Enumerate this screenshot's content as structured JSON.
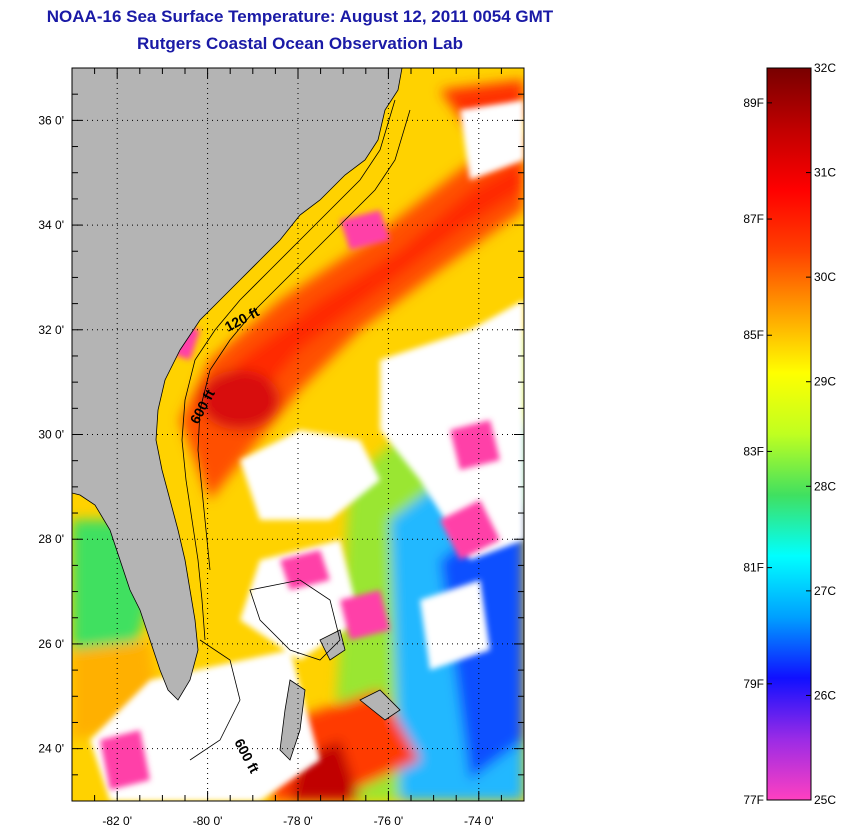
{
  "title": "NOAA-16 Sea Surface Temperature:  August 12, 2011 0054 GMT",
  "subtitle": "Rutgers Coastal Ocean Observation Lab",
  "map": {
    "lon_range": [
      -83,
      -73
    ],
    "lat_range": [
      23,
      37
    ],
    "lat_ticks": [
      {
        "value": 36,
        "label": "36 0'"
      },
      {
        "value": 34,
        "label": "34 0'"
      },
      {
        "value": 32,
        "label": "32 0'"
      },
      {
        "value": 30,
        "label": "30 0'"
      },
      {
        "value": 28,
        "label": "28 0'"
      },
      {
        "value": 26,
        "label": "26 0'"
      },
      {
        "value": 24,
        "label": "24 0'"
      }
    ],
    "lon_ticks": [
      {
        "value": -82,
        "label": "-82 0'"
      },
      {
        "value": -80,
        "label": "-80 0'"
      },
      {
        "value": -78,
        "label": "-78 0'"
      },
      {
        "value": -76,
        "label": "-76 0'"
      },
      {
        "value": -74,
        "label": "-74 0'"
      }
    ],
    "contour_labels": [
      "120 ft",
      "600 ft",
      "600 ft"
    ],
    "land_color": "#b4b4b4",
    "cloud_color": "#ffffff"
  },
  "colorbar": {
    "celsius": [
      "32C",
      "31C",
      "30C",
      "29C",
      "28C",
      "27C",
      "26C",
      "25C"
    ],
    "fahrenheit": [
      "89F",
      "87F",
      "85F",
      "83F",
      "81F",
      "79F",
      "77F"
    ],
    "c_range": [
      25,
      32
    ],
    "stops": [
      "#ff40c0",
      "#9a2be6",
      "#1010ff",
      "#00a0ff",
      "#00ffff",
      "#40e060",
      "#c0ff20",
      "#ffff00",
      "#ffa000",
      "#ff4000",
      "#ff0000",
      "#c00000",
      "#780000"
    ]
  }
}
